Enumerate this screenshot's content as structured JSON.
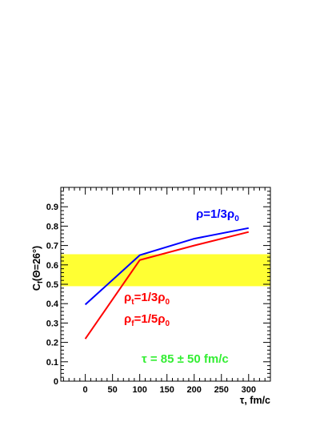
{
  "chart_data": {
    "type": "line",
    "xlabel": "τ, fm/c",
    "ylabel_main": "C",
    "ylabel_sub": "f",
    "ylabel_rest": "(Θ=26°)",
    "xlim": [
      -45,
      340
    ],
    "ylim": [
      0,
      1.0
    ],
    "x_ticks": [
      0,
      50,
      100,
      150,
      200,
      250,
      300
    ],
    "y_ticks": [
      0,
      0.1,
      0.2,
      0.3,
      0.4,
      0.5,
      0.6,
      0.7,
      0.8,
      0.9
    ],
    "x_tick_labels": [
      "0",
      "50",
      "100",
      "150",
      "200",
      "250",
      "300"
    ],
    "y_tick_labels": [
      "0",
      "0.1",
      "0.2",
      "0.3",
      "0.4",
      "0.5",
      "0.6",
      "0.7",
      "0.8",
      "0.9"
    ],
    "band": {
      "y_low": 0.49,
      "y_high": 0.655,
      "color": "#ffff33"
    },
    "series": [
      {
        "color": "#0000ff",
        "x": [
          0,
          100,
          200,
          300
        ],
        "y": [
          0.395,
          0.65,
          0.735,
          0.79
        ]
      },
      {
        "color": "#ff0000",
        "x": [
          0,
          100,
          200,
          300
        ],
        "y": [
          0.218,
          0.625,
          0.7,
          0.77
        ]
      }
    ],
    "annotations": {
      "blue": {
        "color": "#0000ff",
        "rho": "ρ",
        "rest": "=1/3ρ",
        "sub": "0"
      },
      "red1": {
        "color": "#ff0000",
        "rho": "ρ",
        "sub_t": "t",
        "rest": "=1/3ρ",
        "sub0": "0"
      },
      "red2": {
        "color": "#ff0000",
        "rho": "ρ",
        "sub_f": "f",
        "rest": "=1/5ρ",
        "sub0": "0"
      },
      "tau": {
        "color": "#33ee33",
        "text": "τ = 85 ± 50 fm/c"
      }
    }
  }
}
